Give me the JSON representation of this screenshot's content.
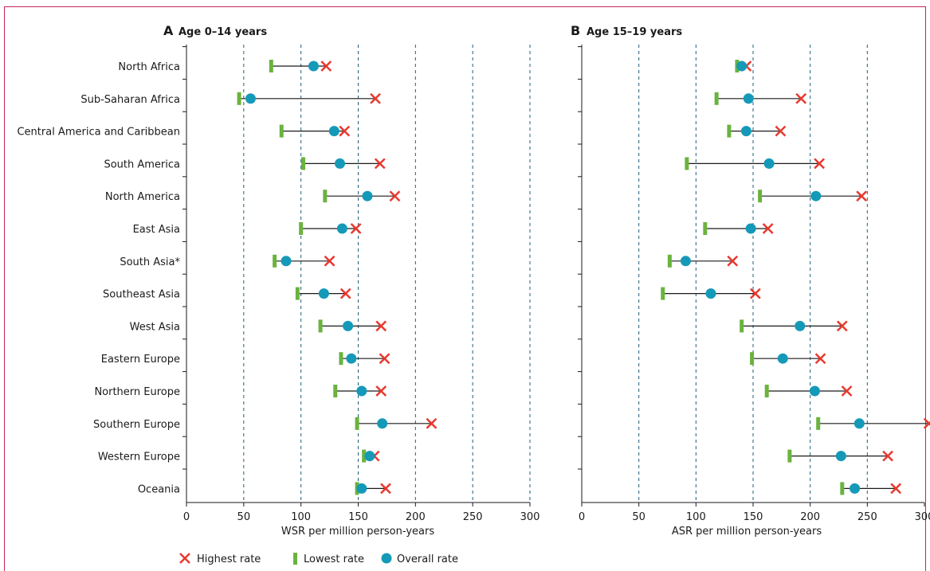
{
  "colors": {
    "highest": "#e8392f",
    "lowest": "#6ab33e",
    "overall": "#1599b8",
    "gridline": "#1d5f7a",
    "frame": "#c8245b"
  },
  "legend": [
    {
      "key": "highest",
      "label": "Highest rate",
      "icon": "x-cross-icon"
    },
    {
      "key": "lowest",
      "label": "Lowest rate",
      "icon": "green-bar-icon"
    },
    {
      "key": "overall",
      "label": "Overall rate",
      "icon": "blue-dot-icon"
    }
  ],
  "chart_data": [
    {
      "type": "dot-range",
      "panel": "A",
      "title": "Age 0–14 years",
      "xlabel": "WSR per million person-years",
      "xlim": [
        0,
        300
      ],
      "xticks": [
        "0",
        "50",
        "100",
        "150",
        "200",
        "250",
        "300"
      ],
      "grid": "vertical dashed at 50–300",
      "categories": [
        "North Africa",
        "Sub-Saharan Africa",
        "Central America and Caribbean",
        "South America",
        "North America",
        "East Asia",
        "South Asia*",
        "Southeast Asia",
        "West Asia",
        "Eastern Europe",
        "Northern Europe",
        "Southern Europe",
        "Western Europe",
        "Oceania"
      ],
      "series": [
        {
          "name": "Lowest rate",
          "key": "lowest",
          "values": [
            74,
            46,
            83,
            102,
            121,
            100,
            77,
            97,
            117,
            135,
            130,
            149,
            155,
            149
          ]
        },
        {
          "name": "Overall rate",
          "key": "overall",
          "values": [
            111,
            56,
            129,
            134,
            158,
            136,
            87,
            120,
            141,
            144,
            153,
            171,
            160,
            153
          ]
        },
        {
          "name": "Highest rate",
          "key": "highest",
          "values": [
            122,
            165,
            138,
            169,
            182,
            148,
            125,
            139,
            170,
            173,
            170,
            214,
            164,
            174
          ]
        }
      ]
    },
    {
      "type": "dot-range",
      "panel": "B",
      "title": "Age 15–19 years",
      "xlabel": "ASR per million person-years",
      "xlim": [
        0,
        300
      ],
      "xticks": [
        "0",
        "50",
        "100",
        "150",
        "200",
        "250",
        "300"
      ],
      "grid": "vertical dashed at 50–250",
      "categories": [
        "North Africa",
        "Sub-Saharan Africa",
        "Central America and Caribbean",
        "South America",
        "North America",
        "East Asia",
        "South Asia*",
        "Southeast Asia",
        "West Asia",
        "Eastern Europe",
        "Northern Europe",
        "Southern Europe",
        "Western Europe",
        "Oceania"
      ],
      "series": [
        {
          "name": "Lowest rate",
          "key": "lowest",
          "values": [
            136,
            118,
            129,
            92,
            156,
            108,
            77,
            71,
            140,
            149,
            162,
            207,
            182,
            228
          ]
        },
        {
          "name": "Overall rate",
          "key": "overall",
          "values": [
            140,
            146,
            144,
            164,
            205,
            148,
            91,
            113,
            191,
            176,
            204,
            243,
            227,
            239
          ]
        },
        {
          "name": "Highest rate",
          "key": "highest",
          "values": [
            144,
            192,
            174,
            208,
            245,
            163,
            132,
            152,
            228,
            209,
            232,
            304,
            268,
            275
          ]
        }
      ]
    }
  ]
}
